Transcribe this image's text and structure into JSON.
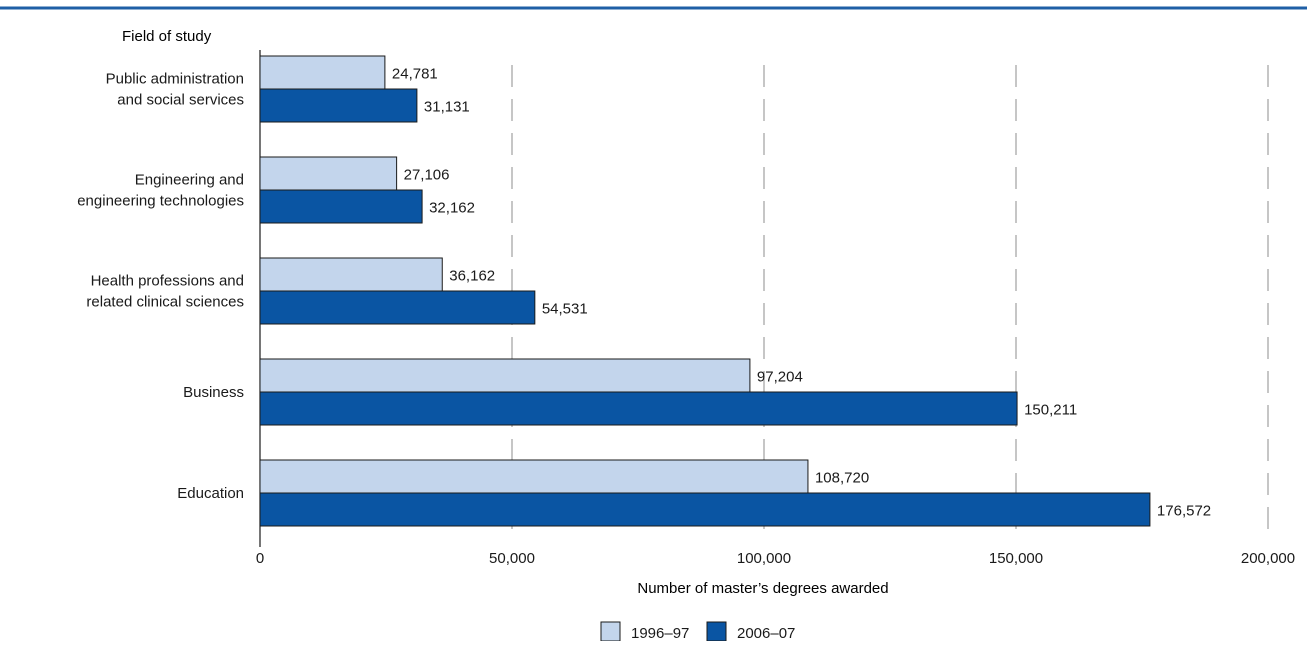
{
  "colors": {
    "rule": "#1f5fa6",
    "series_1996": "#c3d5ec",
    "series_2006": "#0a55a3",
    "bar_stroke": "#1a1a1a",
    "grid": "#8c8c8c",
    "text": "#1a1a1a"
  },
  "chart_data": {
    "type": "bar",
    "orientation": "horizontal",
    "title": "",
    "category_axis_title": "Field of study",
    "xlabel": "Number of master’s degrees awarded",
    "xlim": [
      0,
      200000
    ],
    "xticks": [
      0,
      50000,
      100000,
      150000,
      200000
    ],
    "xtick_labels": [
      "0",
      "50,000",
      "100,000",
      "150,000",
      "200,000"
    ],
    "grid": "vertical dashed",
    "legend_position": "bottom-center",
    "categories": [
      [
        "Public administration",
        "and social services"
      ],
      [
        "Engineering and",
        "engineering technologies"
      ],
      [
        "Health professions and",
        "related clinical sciences"
      ],
      [
        "Business"
      ],
      [
        "Education"
      ]
    ],
    "series": [
      {
        "name": "1996–97",
        "values": [
          24781,
          27106,
          36162,
          97204,
          108720
        ],
        "labels": [
          "24,781",
          "27,106",
          "36,162",
          "97,204",
          "108,720"
        ]
      },
      {
        "name": "2006–07",
        "values": [
          31131,
          32162,
          54531,
          150211,
          176572
        ],
        "labels": [
          "31,131",
          "32,162",
          "54,531",
          "150,211",
          "176,572"
        ]
      }
    ]
  }
}
